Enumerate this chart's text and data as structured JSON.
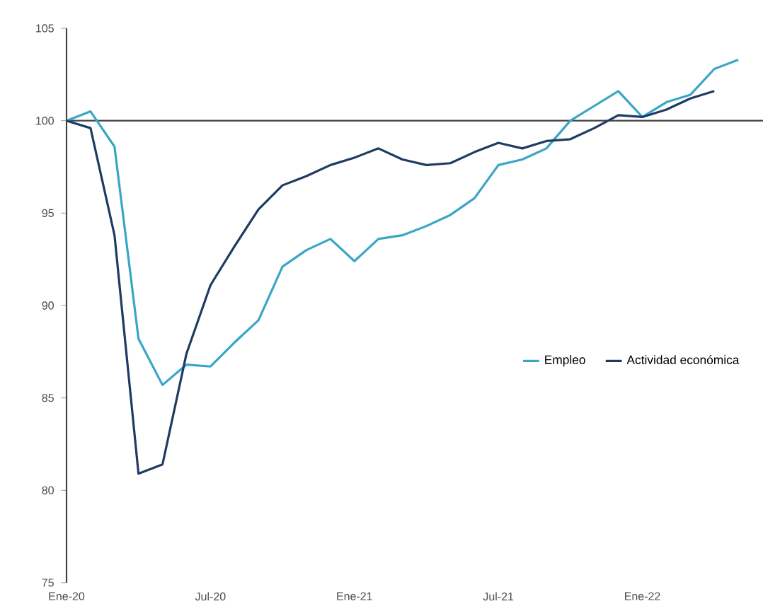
{
  "chart_data": {
    "type": "line",
    "categories": [
      "Ene-20",
      null,
      null,
      null,
      null,
      null,
      "Jul-20",
      null,
      null,
      null,
      null,
      null,
      "Ene-21",
      null,
      null,
      null,
      null,
      null,
      "Jul-21",
      null,
      null,
      null,
      null,
      null,
      "Ene-22",
      null,
      null,
      null,
      null
    ],
    "series": [
      {
        "name": "Empleo",
        "color": "#3aa6c6",
        "values": [
          100,
          100.5,
          98.6,
          88.2,
          85.7,
          86.8,
          86.7,
          88.0,
          89.2,
          92.1,
          93.0,
          93.6,
          92.4,
          93.6,
          93.8,
          94.3,
          94.9,
          95.8,
          97.6,
          97.9,
          98.5,
          100.0,
          100.8,
          101.6,
          100.2,
          101.0,
          101.4,
          102.8,
          103.3
        ]
      },
      {
        "name": "Actividad económica",
        "color": "#1f3b63",
        "values": [
          100,
          99.6,
          93.8,
          80.9,
          81.4,
          87.4,
          91.1,
          93.2,
          95.2,
          96.5,
          97.0,
          97.6,
          98.0,
          98.5,
          97.9,
          97.6,
          97.7,
          98.3,
          98.8,
          98.5,
          98.9,
          99.0,
          99.6,
          100.3,
          100.2,
          100.6,
          101.2,
          101.6,
          null
        ]
      }
    ],
    "ylim": [
      75,
      105
    ],
    "yticks": [
      75,
      80,
      85,
      90,
      95,
      100,
      105
    ],
    "ref_lines": [
      {
        "axis": "y",
        "value": 100,
        "color": "#404040"
      }
    ],
    "legend": "right",
    "marker": "none",
    "line_style": "solid",
    "grid": false
  }
}
